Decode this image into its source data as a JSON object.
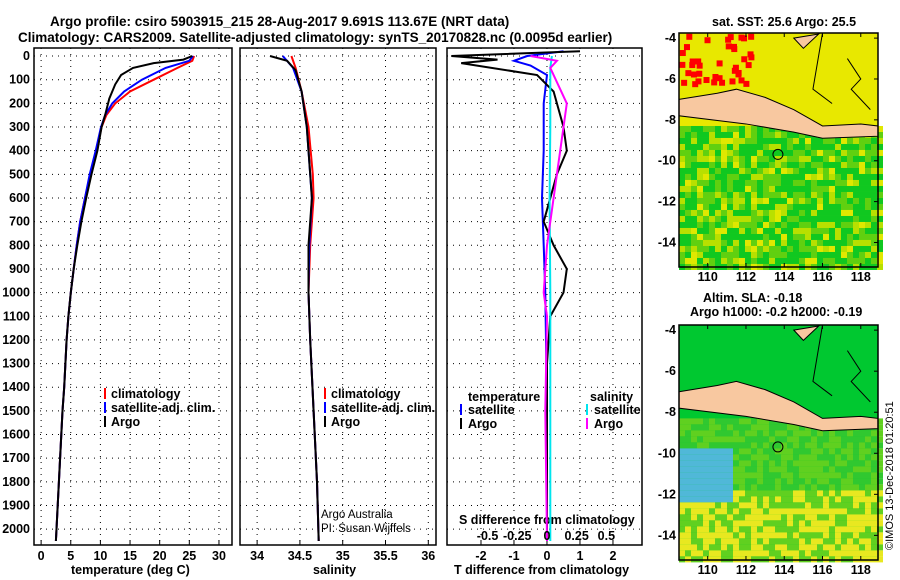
{
  "title_line1": "Argo profile: csiro 5903915_215 28-Aug-2017 9.691S 113.67E (NRT data)",
  "title_line2": "Climatology: CARS2009. Satellite-adjusted climatology: synTS_20170828.nc (0.0095d earlier)",
  "credit": {
    "line1": "Argo Australia",
    "line2": "PI: Susan Wijffels",
    "imos": "©IMOS 13-Dec-2018 01:20:51"
  },
  "colors": {
    "climatology": "#ff0000",
    "satellite": "#0000ff",
    "argo": "#000000",
    "sal_satellite": "#00e5ee",
    "sal_argo": "#ff00ff"
  },
  "map1": {
    "title": "sat. SST: 25.6 Argo: 25.5",
    "lon_ticks": [
      110,
      112,
      114,
      116,
      118
    ],
    "lat_ticks": [
      -4,
      -6,
      -8,
      -10,
      -12,
      -14
    ],
    "float_lon": 113.67,
    "float_lat": -9.691
  },
  "map2": {
    "title1": "Altim. SLA: -0.18",
    "title2": "Argo h1000: -0.2 h2000: -0.19",
    "lon_ticks": [
      110,
      112,
      114,
      116,
      118
    ],
    "lat_ticks": [
      -4,
      -6,
      -8,
      -10,
      -12,
      -14
    ],
    "float_lon": 113.67,
    "float_lat": -9.691
  },
  "chart_data": [
    {
      "type": "line",
      "xlabel": "temperature (deg C)",
      "ylabel": "pressure",
      "xlim": [
        -1.2,
        32.2
      ],
      "ylim": [
        2067,
        -34
      ],
      "xticks": [
        0,
        5,
        10,
        15,
        20,
        25,
        30
      ],
      "yticks": [
        0,
        100,
        200,
        300,
        400,
        500,
        600,
        700,
        800,
        900,
        1000,
        1100,
        1200,
        1300,
        1400,
        1500,
        1600,
        1700,
        1800,
        1900,
        2000
      ],
      "legend": [
        "climatology",
        "satellite-adj. clim.",
        "Argo"
      ],
      "series": [
        {
          "name": "climatology",
          "color": "#ff0000",
          "points": [
            [
              25.8,
              0
            ],
            [
              25.5,
              20
            ],
            [
              23,
              50
            ],
            [
              19,
              100
            ],
            [
              15,
              150
            ],
            [
              12.5,
              200
            ],
            [
              11,
              250
            ],
            [
              10.2,
              300
            ],
            [
              9.3,
              400
            ],
            [
              8.3,
              500
            ],
            [
              7.4,
              600
            ],
            [
              6.6,
              700
            ],
            [
              6,
              800
            ],
            [
              5.5,
              900
            ],
            [
              5,
              1000
            ],
            [
              4.6,
              1100
            ],
            [
              4.3,
              1200
            ],
            [
              3.9,
              1400
            ],
            [
              3.6,
              1500
            ],
            [
              3.2,
              1700
            ],
            [
              2.8,
              1900
            ],
            [
              2.5,
              2050
            ]
          ]
        },
        {
          "name": "satellite-adj. clim.",
          "color": "#0000ff",
          "points": [
            [
              25.6,
              0
            ],
            [
              25,
              20
            ],
            [
              21,
              50
            ],
            [
              17,
              100
            ],
            [
              14,
              150
            ],
            [
              12,
              200
            ],
            [
              10.8,
              250
            ],
            [
              10.1,
              300
            ],
            [
              9.2,
              400
            ],
            [
              8.2,
              500
            ],
            [
              7.4,
              600
            ],
            [
              6.6,
              700
            ],
            [
              6,
              800
            ],
            [
              5.5,
              900
            ],
            [
              5,
              1000
            ],
            [
              4.6,
              1100
            ],
            [
              4.3,
              1200
            ],
            [
              3.9,
              1400
            ],
            [
              3.6,
              1500
            ],
            [
              3.2,
              1700
            ],
            [
              2.8,
              1900
            ],
            [
              2.5,
              2050
            ]
          ]
        },
        {
          "name": "Argo",
          "color": "#000000",
          "points": [
            [
              25.5,
              0
            ],
            [
              24,
              15
            ],
            [
              19,
              30
            ],
            [
              15.5,
              50
            ],
            [
              13.5,
              80
            ],
            [
              12.5,
              120
            ],
            [
              11.5,
              180
            ],
            [
              10.8,
              250
            ],
            [
              10.2,
              300
            ],
            [
              9.5,
              400
            ],
            [
              8.5,
              500
            ],
            [
              7.6,
              600
            ],
            [
              6.8,
              700
            ],
            [
              6.1,
              800
            ],
            [
              5.5,
              900
            ],
            [
              5,
              1000
            ],
            [
              4.6,
              1100
            ],
            [
              4.3,
              1200
            ],
            [
              3.9,
              1400
            ],
            [
              3.6,
              1500
            ],
            [
              3.2,
              1700
            ],
            [
              2.8,
              1900
            ],
            [
              2.5,
              2050
            ]
          ]
        }
      ]
    },
    {
      "type": "line",
      "xlabel": "salinity",
      "xlim": [
        33.8,
        36.09
      ],
      "ylim": [
        2067,
        -34
      ],
      "xticks": [
        34,
        34.5,
        35,
        35.5,
        36
      ],
      "legend": [
        "climatology",
        "satellite-adj. clim.",
        "Argo"
      ],
      "series": [
        {
          "name": "climatology",
          "color": "#ff0000",
          "points": [
            [
              34.4,
              0
            ],
            [
              34.45,
              50
            ],
            [
              34.52,
              150
            ],
            [
              34.6,
              300
            ],
            [
              34.65,
              500
            ],
            [
              34.66,
              600
            ],
            [
              34.62,
              800
            ],
            [
              34.6,
              1000
            ],
            [
              34.62,
              1200
            ],
            [
              34.66,
              1500
            ],
            [
              34.7,
              1800
            ],
            [
              34.72,
              2050
            ]
          ]
        },
        {
          "name": "satellite-adj. clim.",
          "color": "#0000ff",
          "points": [
            [
              34.3,
              0
            ],
            [
              34.42,
              50
            ],
            [
              34.52,
              150
            ],
            [
              34.58,
              300
            ],
            [
              34.62,
              500
            ],
            [
              34.64,
              600
            ],
            [
              34.61,
              800
            ],
            [
              34.6,
              1000
            ],
            [
              34.62,
              1200
            ],
            [
              34.66,
              1500
            ],
            [
              34.7,
              1800
            ],
            [
              34.72,
              2050
            ]
          ]
        },
        {
          "name": "Argo",
          "color": "#000000",
          "points": [
            [
              34.15,
              0
            ],
            [
              34.35,
              20
            ],
            [
              34.45,
              60
            ],
            [
              34.52,
              150
            ],
            [
              34.58,
              300
            ],
            [
              34.62,
              500
            ],
            [
              34.64,
              600
            ],
            [
              34.6,
              800
            ],
            [
              34.6,
              1000
            ],
            [
              34.62,
              1200
            ],
            [
              34.66,
              1500
            ],
            [
              34.7,
              1800
            ],
            [
              34.72,
              2050
            ]
          ]
        }
      ]
    },
    {
      "type": "line",
      "xlabel": "T difference from climatology",
      "x2label": "S difference from climatology",
      "xlim": [
        -3.03,
        2.88
      ],
      "ylim": [
        2067,
        -34
      ],
      "xticks": [
        -2,
        -1,
        0,
        1,
        2
      ],
      "x2ticks": [
        -0.5,
        -0.25,
        0,
        0.25,
        0.5
      ],
      "legend_temperature": {
        "title": "temperature",
        "items": [
          "satellite",
          "Argo"
        ]
      },
      "legend_salinity": {
        "title": "salinity",
        "items": [
          "satellite",
          "Argo"
        ]
      },
      "series": [
        {
          "name": "temperature satellite",
          "color": "#0000ff",
          "points": [
            [
              0.5,
              -20
            ],
            [
              -0.6,
              0
            ],
            [
              -1,
              20
            ],
            [
              -0.5,
              40
            ],
            [
              0,
              80
            ],
            [
              -0.1,
              200
            ],
            [
              -0.1,
              400
            ],
            [
              -0.15,
              600
            ],
            [
              -0.1,
              800
            ],
            [
              -0.05,
              1000
            ],
            [
              0,
              1500
            ],
            [
              0,
              2050
            ]
          ]
        },
        {
          "name": "temperature Argo",
          "color": "#000000",
          "points": [
            [
              1,
              -20
            ],
            [
              -2.9,
              0
            ],
            [
              -1.5,
              15
            ],
            [
              -2.6,
              30
            ],
            [
              -0.3,
              80
            ],
            [
              0.2,
              150
            ],
            [
              0.5,
              300
            ],
            [
              0.6,
              400
            ],
            [
              0.3,
              500
            ],
            [
              0,
              650
            ],
            [
              -0.1,
              700
            ],
            [
              0.2,
              800
            ],
            [
              0.6,
              900
            ],
            [
              0.5,
              1000
            ],
            [
              0.1,
              1100
            ],
            [
              0,
              1300
            ],
            [
              0,
              2050
            ]
          ]
        },
        {
          "name": "salinity satellite",
          "color": "#00e5ee",
          "points": [
            [
              0.15,
              0
            ],
            [
              0.1,
              50
            ],
            [
              0.1,
              300
            ],
            [
              0.08,
              600
            ],
            [
              0.1,
              1000
            ],
            [
              0.1,
              1500
            ],
            [
              0.1,
              2050
            ]
          ]
        },
        {
          "name": "salinity Argo",
          "color": "#ff00ff",
          "points": [
            [
              -0.5,
              0
            ],
            [
              0.3,
              20
            ],
            [
              0.1,
              50
            ],
            [
              0.6,
              200
            ],
            [
              0.4,
              400
            ],
            [
              0.2,
              600
            ],
            [
              0,
              800
            ],
            [
              -0.1,
              1000
            ],
            [
              0,
              1100
            ],
            [
              -0.05,
              1500
            ],
            [
              0,
              2050
            ]
          ]
        }
      ]
    }
  ]
}
